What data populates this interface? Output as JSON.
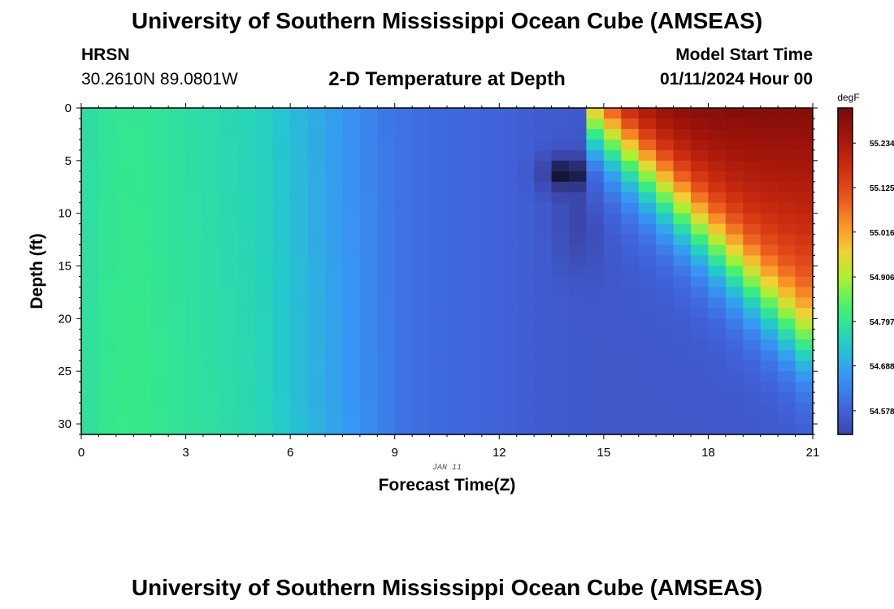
{
  "header": {
    "main_title": "University of Southern Mississippi Ocean Cube (AMSEAS)",
    "station": "HRSN",
    "coords": "30.2610N  89.0801W",
    "chart_title": "2-D Temperature at Depth",
    "model_start_label": "Model Start Time",
    "model_start_value": "01/11/2024 Hour 00"
  },
  "footer": {
    "title": "University of Southern Mississippi Ocean Cube (AMSEAS)"
  },
  "chart_data": {
    "type": "heatmap",
    "title": "2-D Temperature at Depth",
    "xlabel": "Forecast Time(Z)",
    "ylabel": "Depth (ft)",
    "date_label": "JAN 11",
    "xlim": [
      0,
      21
    ],
    "ylim": [
      0,
      31
    ],
    "x_ticks": [
      0,
      3,
      6,
      9,
      12,
      15,
      18,
      21
    ],
    "y_ticks": [
      0,
      5,
      10,
      15,
      20,
      25,
      30
    ],
    "colorbar": {
      "unit": "degF",
      "ticks": [
        54.578,
        54.688,
        54.797,
        54.906,
        55.016,
        55.125,
        55.234
      ],
      "range": [
        54.52,
        55.32
      ]
    },
    "notes": "Near-uniform warm column (~54.80 degF) early, cooling to ~54.56 degF near hour 14-15, with a cold anomaly (~54.45 degF) near 5-8 ft at hour 13.5-14.5, then strong warming at the surface after hour 15 reaching ~55.30 degF."
  }
}
